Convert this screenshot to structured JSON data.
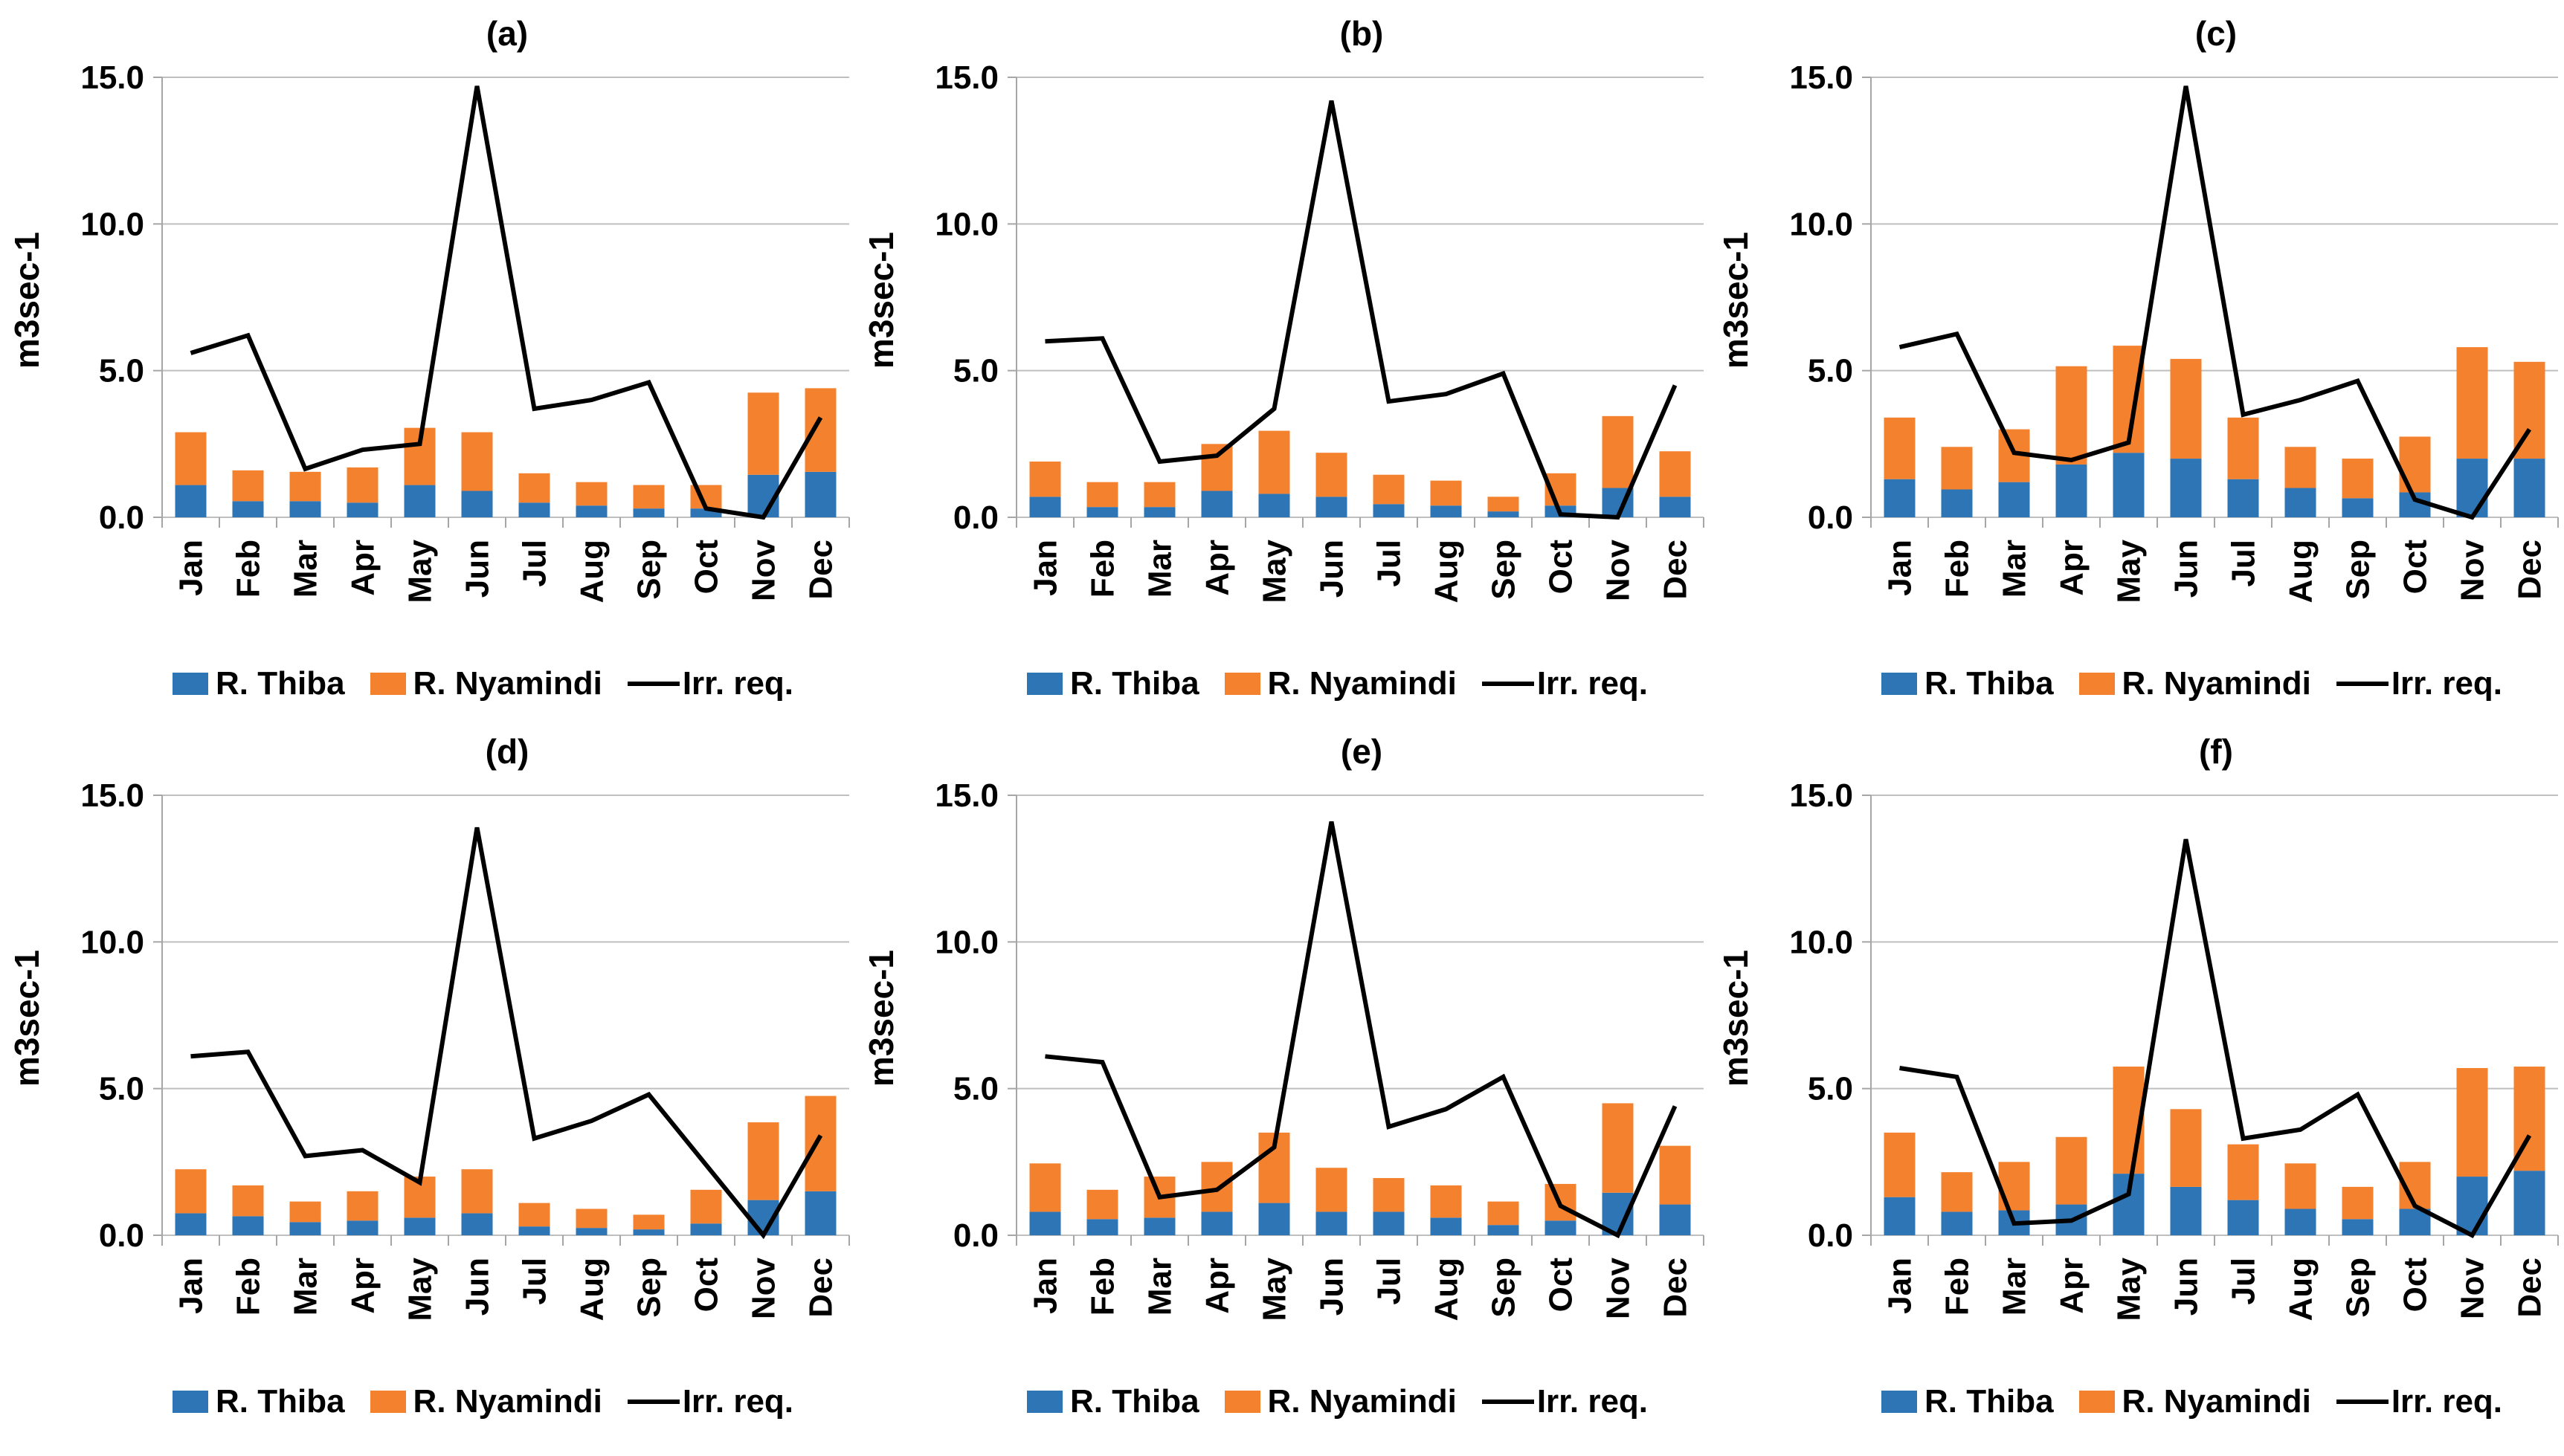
{
  "figure": {
    "description": "Six-panel monthly river flow vs irrigation requirement figure",
    "panel_labels": [
      "(a)",
      "(b)",
      "(c)",
      "(d)",
      "(e)",
      "(f)"
    ],
    "background": "#FFFFFF"
  },
  "legend": {
    "thiba": "R. Thiba",
    "nyamindi": "R. Nyamindi",
    "irr": "Irr. req."
  },
  "colors": {
    "thiba_blue": "#2E75B6",
    "nyamindi_orange": "#F4812D",
    "irr_line": "#000000",
    "gridline": "#BFBFBF",
    "axis": "#A6A6A6",
    "text": "#000000"
  },
  "axis": {
    "ylabel": "m3sec-1",
    "ytick_labels": [
      "15.0",
      "10.0",
      "5.0",
      "0.0"
    ],
    "ylim": [
      0,
      15
    ],
    "months": [
      "Jan",
      "Feb",
      "Mar",
      "Apr",
      "May",
      "Jun",
      "Jul",
      "Aug",
      "Sep",
      "Oct",
      "Nov",
      "Dec"
    ]
  },
  "chart_data": [
    {
      "type": "bar",
      "panel": "(a)",
      "stacked": true,
      "grid": true,
      "legend_position": "bottom",
      "ylabel": "m3sec-1",
      "ylim": [
        0,
        15
      ],
      "yticks": [
        0,
        5,
        10,
        15
      ],
      "categories": [
        "Jan",
        "Feb",
        "Mar",
        "Apr",
        "May",
        "Jun",
        "Jul",
        "Aug",
        "Sep",
        "Oct",
        "Nov",
        "Dec"
      ],
      "series": [
        {
          "name": "R. Thiba",
          "type": "bar",
          "color": "#2E75B6",
          "values": [
            1.1,
            0.55,
            0.55,
            0.5,
            1.1,
            0.9,
            0.5,
            0.4,
            0.3,
            0.3,
            1.45,
            1.55
          ]
        },
        {
          "name": "R. Nyamindi",
          "type": "bar",
          "color": "#F4812D",
          "values": [
            1.8,
            1.05,
            1.0,
            1.2,
            1.95,
            2.0,
            1.0,
            0.8,
            0.8,
            0.8,
            2.8,
            2.85
          ]
        },
        {
          "name": "Irr. req.",
          "type": "line",
          "color": "#000000",
          "values": [
            5.6,
            6.2,
            1.65,
            2.3,
            2.5,
            14.7,
            3.7,
            4.0,
            4.6,
            0.3,
            0.0,
            3.4
          ]
        }
      ]
    },
    {
      "type": "bar",
      "panel": "(b)",
      "stacked": true,
      "grid": true,
      "legend_position": "bottom",
      "ylabel": "m3sec-1",
      "ylim": [
        0,
        15
      ],
      "yticks": [
        0,
        5,
        10,
        15
      ],
      "categories": [
        "Jan",
        "Feb",
        "Mar",
        "Apr",
        "May",
        "Jun",
        "Jul",
        "Aug",
        "Sep",
        "Oct",
        "Nov",
        "Dec"
      ],
      "series": [
        {
          "name": "R. Thiba",
          "type": "bar",
          "color": "#2E75B6",
          "values": [
            0.7,
            0.35,
            0.35,
            0.9,
            0.8,
            0.7,
            0.45,
            0.4,
            0.2,
            0.4,
            1.0,
            0.7
          ]
        },
        {
          "name": "R. Nyamindi",
          "type": "bar",
          "color": "#F4812D",
          "values": [
            1.2,
            0.85,
            0.85,
            1.6,
            2.15,
            1.5,
            1.0,
            0.85,
            0.5,
            1.1,
            2.45,
            1.55
          ]
        },
        {
          "name": "Irr. req.",
          "type": "line",
          "color": "#000000",
          "values": [
            6.0,
            6.1,
            1.9,
            2.1,
            3.7,
            14.2,
            3.95,
            4.2,
            4.9,
            0.1,
            0.0,
            4.5
          ]
        }
      ]
    },
    {
      "type": "bar",
      "panel": "(c)",
      "stacked": true,
      "grid": true,
      "legend_position": "bottom",
      "ylabel": "m3sec-1",
      "ylim": [
        0,
        15
      ],
      "yticks": [
        0,
        5,
        10,
        15
      ],
      "categories": [
        "Jan",
        "Feb",
        "Mar",
        "Apr",
        "May",
        "Jun",
        "Jul",
        "Aug",
        "Sep",
        "Oct",
        "Nov",
        "Dec"
      ],
      "series": [
        {
          "name": "R. Thiba",
          "type": "bar",
          "color": "#2E75B6",
          "values": [
            1.3,
            0.95,
            1.2,
            1.8,
            2.2,
            2.0,
            1.3,
            1.0,
            0.65,
            0.85,
            2.0,
            2.0
          ]
        },
        {
          "name": "R. Nyamindi",
          "type": "bar",
          "color": "#F4812D",
          "values": [
            2.1,
            1.45,
            1.8,
            3.35,
            3.65,
            3.4,
            2.1,
            1.4,
            1.35,
            1.9,
            3.8,
            3.3
          ]
        },
        {
          "name": "Irr. req.",
          "type": "line",
          "color": "#000000",
          "values": [
            5.8,
            6.25,
            2.2,
            1.95,
            2.55,
            14.7,
            3.5,
            4.0,
            4.65,
            0.6,
            0.0,
            3.0
          ]
        }
      ]
    },
    {
      "type": "bar",
      "panel": "(d)",
      "stacked": true,
      "grid": true,
      "legend_position": "bottom",
      "ylabel": "m3sec-1",
      "ylim": [
        0,
        15
      ],
      "yticks": [
        0,
        5,
        10,
        15
      ],
      "categories": [
        "Jan",
        "Feb",
        "Mar",
        "Apr",
        "May",
        "Jun",
        "Jul",
        "Aug",
        "Sep",
        "Oct",
        "Nov",
        "Dec"
      ],
      "series": [
        {
          "name": "R. Thiba",
          "type": "bar",
          "color": "#2E75B6",
          "values": [
            0.75,
            0.65,
            0.45,
            0.5,
            0.6,
            0.75,
            0.3,
            0.25,
            0.2,
            0.4,
            1.2,
            1.5
          ]
        },
        {
          "name": "R. Nyamindi",
          "type": "bar",
          "color": "#F4812D",
          "values": [
            1.5,
            1.05,
            0.7,
            1.0,
            1.4,
            1.5,
            0.8,
            0.65,
            0.5,
            1.15,
            2.65,
            3.25
          ]
        },
        {
          "name": "Irr. req.",
          "type": "line",
          "color": "#000000",
          "values": [
            6.1,
            6.25,
            2.7,
            2.9,
            1.8,
            13.9,
            3.3,
            3.9,
            4.8,
            2.4,
            0.0,
            3.4
          ]
        }
      ]
    },
    {
      "type": "bar",
      "panel": "(e)",
      "stacked": true,
      "grid": true,
      "legend_position": "bottom",
      "ylabel": "m3sec-1",
      "ylim": [
        0,
        15
      ],
      "yticks": [
        0,
        5,
        10,
        15
      ],
      "categories": [
        "Jan",
        "Feb",
        "Mar",
        "Apr",
        "May",
        "Jun",
        "Jul",
        "Aug",
        "Sep",
        "Oct",
        "Nov",
        "Dec"
      ],
      "series": [
        {
          "name": "R. Thiba",
          "type": "bar",
          "color": "#2E75B6",
          "values": [
            0.8,
            0.55,
            0.6,
            0.8,
            1.1,
            0.8,
            0.8,
            0.6,
            0.35,
            0.5,
            1.45,
            1.05
          ]
        },
        {
          "name": "R. Nyamindi",
          "type": "bar",
          "color": "#F4812D",
          "values": [
            1.65,
            1.0,
            1.4,
            1.7,
            2.4,
            1.5,
            1.15,
            1.1,
            0.8,
            1.25,
            3.05,
            2.0
          ]
        },
        {
          "name": "Irr. req.",
          "type": "line",
          "color": "#000000",
          "values": [
            6.1,
            5.9,
            1.3,
            1.55,
            3.0,
            14.1,
            3.7,
            4.3,
            5.4,
            1.0,
            0.0,
            4.4
          ]
        }
      ]
    },
    {
      "type": "bar",
      "panel": "(f)",
      "stacked": true,
      "grid": true,
      "legend_position": "bottom",
      "ylabel": "m3sec-1",
      "ylim": [
        0,
        15
      ],
      "yticks": [
        0,
        5,
        10,
        15
      ],
      "categories": [
        "Jan",
        "Feb",
        "Mar",
        "Apr",
        "May",
        "Jun",
        "Jul",
        "Aug",
        "Sep",
        "Oct",
        "Nov",
        "Dec"
      ],
      "series": [
        {
          "name": "R. Thiba",
          "type": "bar",
          "color": "#2E75B6",
          "values": [
            1.3,
            0.8,
            0.85,
            1.05,
            2.1,
            1.65,
            1.2,
            0.9,
            0.55,
            0.9,
            2.0,
            2.2
          ]
        },
        {
          "name": "R. Nyamindi",
          "type": "bar",
          "color": "#F4812D",
          "values": [
            2.2,
            1.35,
            1.65,
            2.3,
            3.65,
            2.65,
            1.9,
            1.55,
            1.1,
            1.6,
            3.7,
            3.55
          ]
        },
        {
          "name": "Irr. req.",
          "type": "line",
          "color": "#000000",
          "values": [
            5.7,
            5.4,
            0.4,
            0.5,
            1.4,
            13.5,
            3.3,
            3.6,
            4.8,
            1.0,
            0.0,
            3.4
          ]
        }
      ]
    }
  ]
}
